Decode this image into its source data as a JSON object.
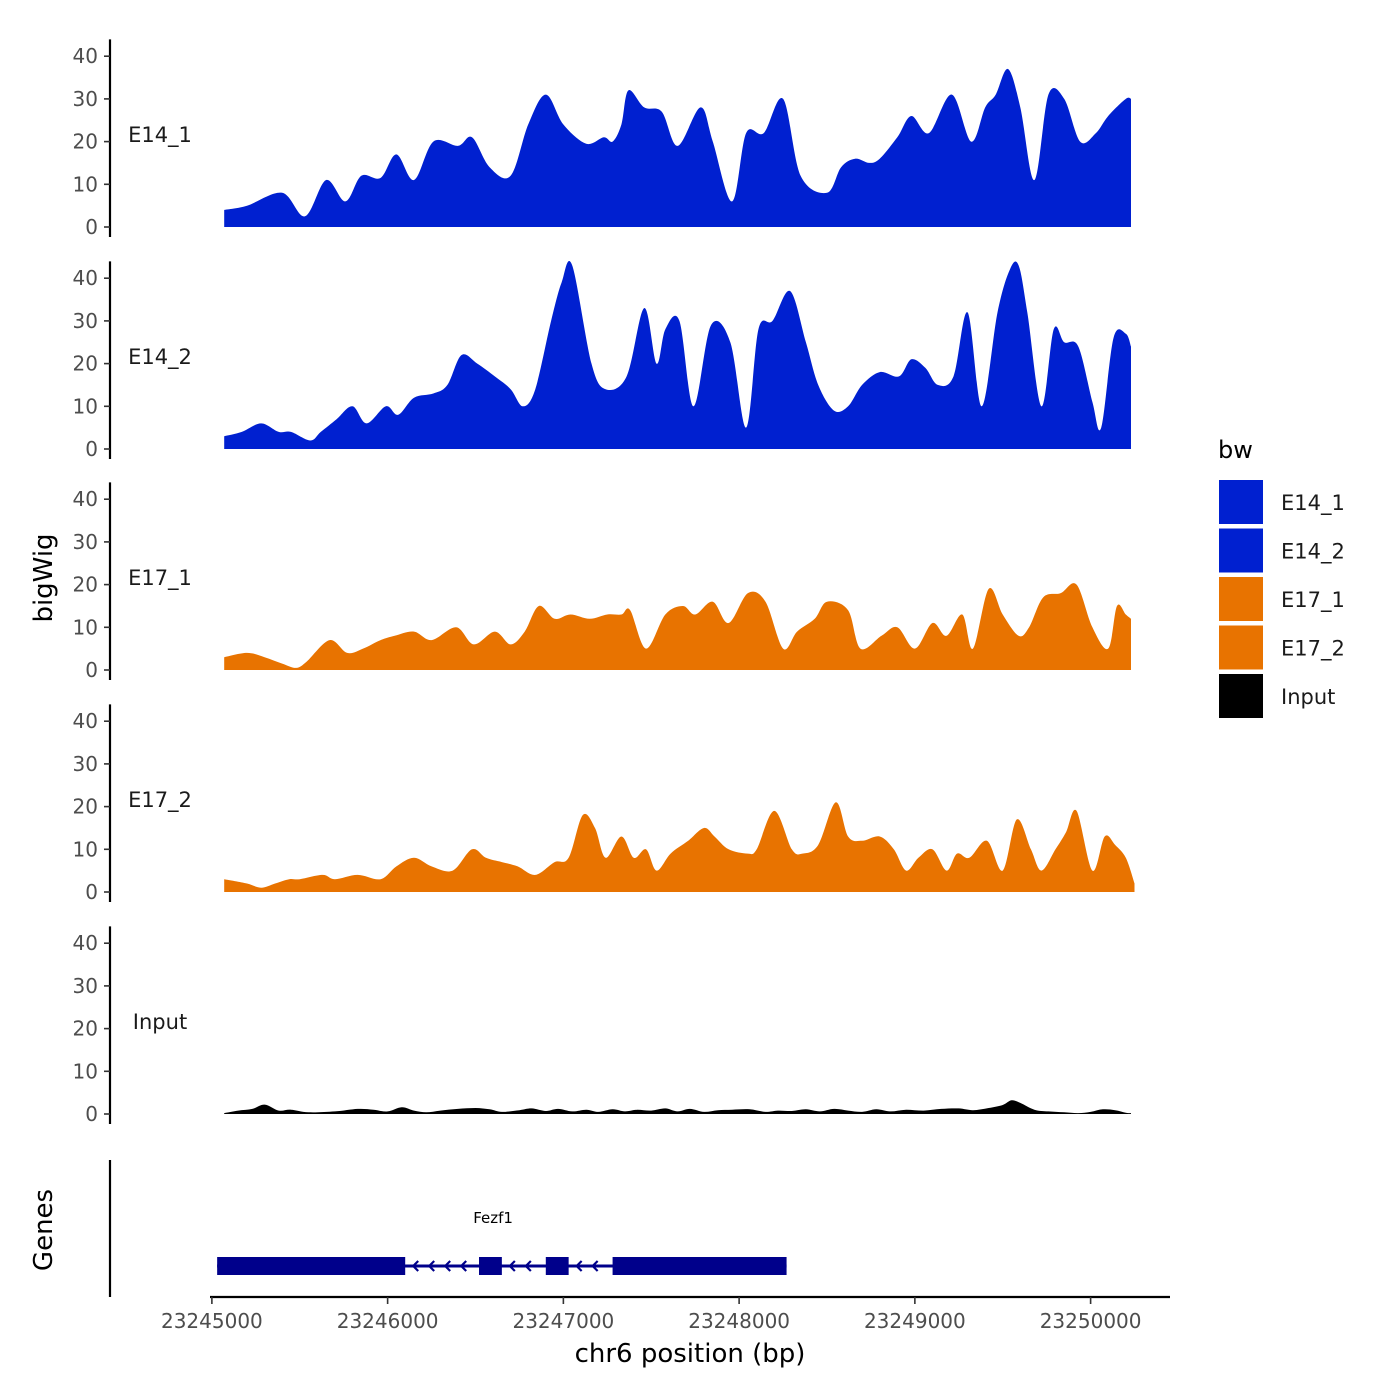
{
  "chart_data": {
    "type": "area",
    "title": "",
    "xlabel": "chr6 position (bp)",
    "ylabel": "bigWig",
    "genes_label": "Genes",
    "x_range": [
      23244830,
      23250520
    ],
    "x_ticks": [
      23245000,
      23246000,
      23247000,
      23248000,
      23249000,
      23250000
    ],
    "y_range": [
      0,
      43
    ],
    "y_ticks": [
      0,
      10,
      20,
      30,
      40
    ],
    "legend": {
      "title": "bw",
      "entries": [
        {
          "label": "E14_1",
          "color": "#0020d0"
        },
        {
          "label": "E14_2",
          "color": "#0020d0"
        },
        {
          "label": "E17_1",
          "color": "#e87300"
        },
        {
          "label": "E17_2",
          "color": "#e87300"
        },
        {
          "label": "Input",
          "color": "#000000"
        }
      ]
    },
    "series": [
      {
        "name": "E14_1",
        "color": "#0020d0",
        "x": [
          23245070,
          23245200,
          23245400,
          23245530,
          23245650,
          23245760,
          23245850,
          23245960,
          23246050,
          23246150,
          23246260,
          23246400,
          23246480,
          23246580,
          23246700,
          23246800,
          23246900,
          23247000,
          23247130,
          23247230,
          23247280,
          23247330,
          23247370,
          23247460,
          23247560,
          23247650,
          23247780,
          23247850,
          23247960,
          23248040,
          23248140,
          23248250,
          23248350,
          23248500,
          23248580,
          23248660,
          23248740,
          23248800,
          23248900,
          23248980,
          23249080,
          23249210,
          23249320,
          23249400,
          23249460,
          23249530,
          23249600,
          23249680,
          23249760,
          23249850,
          23249940,
          23250030,
          23250100,
          23250200,
          23250230
        ],
        "y": [
          4,
          5,
          8,
          2.5,
          11,
          6,
          12,
          11.5,
          17,
          11,
          20,
          19,
          21,
          14,
          12,
          24,
          31,
          24,
          19.5,
          21,
          20,
          24,
          32,
          28,
          27,
          19,
          28,
          20,
          6,
          22,
          22,
          30,
          12,
          8,
          14,
          16,
          15,
          16,
          21,
          26,
          22,
          31,
          20,
          28,
          31,
          37,
          28,
          11,
          31,
          30,
          20,
          22,
          26,
          30,
          30
        ]
      },
      {
        "name": "E14_2",
        "color": "#0020d0",
        "x": [
          23245070,
          23245170,
          23245280,
          23245380,
          23245450,
          23245560,
          23245620,
          23245710,
          23245800,
          23245880,
          23245990,
          23246060,
          23246150,
          23246260,
          23246340,
          23246420,
          23246510,
          23246610,
          23246700,
          23246770,
          23246840,
          23246930,
          23246990,
          23247050,
          23247160,
          23247240,
          23247360,
          23247460,
          23247530,
          23247580,
          23247660,
          23247740,
          23247840,
          23247950,
          23248040,
          23248110,
          23248190,
          23248290,
          23248380,
          23248450,
          23248540,
          23248620,
          23248700,
          23248800,
          23248910,
          23248980,
          23249060,
          23249130,
          23249220,
          23249300,
          23249380,
          23249470,
          23249540,
          23249590,
          23249640,
          23249720,
          23249790,
          23249850,
          23249930,
          23250010,
          23250060,
          23250130,
          23250200,
          23250230
        ],
        "y": [
          3,
          4,
          6,
          4,
          4,
          2,
          4,
          7,
          10,
          6,
          10,
          8,
          12,
          13,
          15,
          22,
          20,
          17,
          14,
          10,
          14,
          30,
          39,
          43,
          20,
          14,
          17,
          33,
          20,
          28,
          30,
          10,
          29,
          25,
          5,
          28,
          30,
          37,
          25,
          15,
          9,
          10,
          15,
          18,
          17,
          21,
          19,
          15,
          17,
          32,
          10,
          32,
          42,
          43,
          32,
          10,
          28,
          25,
          24,
          11,
          5,
          26,
          27,
          24
        ]
      },
      {
        "name": "E17_1",
        "color": "#e87300",
        "x": [
          23245070,
          23245200,
          23245300,
          23245400,
          23245480,
          23245540,
          23245670,
          23245770,
          23245860,
          23245960,
          23246040,
          23246150,
          23246250,
          23246390,
          23246490,
          23246610,
          23246700,
          23246780,
          23246860,
          23246950,
          23247040,
          23247150,
          23247250,
          23247330,
          23247380,
          23247470,
          23247580,
          23247680,
          23247750,
          23247850,
          23247940,
          23248050,
          23248150,
          23248250,
          23248330,
          23248430,
          23248500,
          23248620,
          23248690,
          23248810,
          23248900,
          23249000,
          23249100,
          23249180,
          23249270,
          23249330,
          23249420,
          23249500,
          23249590,
          23249650,
          23249730,
          23249830,
          23249920,
          23250010,
          23250100,
          23250150,
          23250200,
          23250230
        ],
        "y": [
          3,
          4,
          3,
          1.5,
          0.5,
          2,
          7,
          4,
          5,
          7,
          8,
          9,
          7,
          10,
          6,
          9,
          6,
          9,
          15,
          12,
          13,
          12,
          13,
          13,
          14,
          5,
          13,
          15,
          13,
          16,
          11,
          18,
          16,
          5,
          9,
          12,
          16,
          14,
          5,
          8,
          10,
          5,
          11,
          8,
          13,
          5,
          19,
          13,
          8,
          10,
          17,
          18,
          20,
          10,
          5,
          15,
          13,
          12
        ]
      },
      {
        "name": "E17_2",
        "color": "#e87300",
        "x": [
          23245070,
          23245200,
          23245280,
          23245360,
          23245440,
          23245500,
          23245630,
          23245700,
          23245830,
          23245960,
          23246050,
          23246150,
          23246250,
          23246370,
          23246480,
          23246560,
          23246650,
          23246740,
          23246840,
          23246950,
          23247030,
          23247110,
          23247180,
          23247240,
          23247330,
          23247400,
          23247470,
          23247530,
          23247610,
          23247710,
          23247800,
          23247860,
          23247940,
          23248050,
          23248100,
          23248200,
          23248300,
          23248360,
          23248450,
          23248550,
          23248620,
          23248700,
          23248800,
          23248880,
          23248950,
          23249020,
          23249100,
          23249180,
          23249240,
          23249310,
          23249410,
          23249500,
          23249580,
          23249660,
          23249720,
          23249800,
          23249860,
          23249920,
          23250010,
          23250080,
          23250140,
          23250200,
          23250250
        ],
        "y": [
          3,
          2,
          1,
          2,
          3,
          3,
          4,
          3,
          4,
          3,
          6,
          8,
          6,
          5,
          10,
          8,
          7,
          6,
          4,
          7,
          8,
          18,
          15,
          8,
          13,
          8,
          10,
          5,
          9,
          12,
          15,
          13,
          10,
          9,
          10,
          19,
          10,
          9,
          11,
          21,
          13,
          12,
          13,
          10,
          5,
          8,
          10,
          5,
          9,
          8,
          12,
          5,
          17,
          10,
          5,
          10,
          14,
          19,
          5,
          13,
          11,
          8,
          2
        ]
      },
      {
        "name": "Input",
        "color": "#000000",
        "x": [
          23245070,
          23245150,
          23245230,
          23245300,
          23245380,
          23245450,
          23245550,
          23245700,
          23245830,
          23245920,
          23246000,
          23246080,
          23246150,
          23246220,
          23246300,
          23246400,
          23246500,
          23246580,
          23246650,
          23246750,
          23246820,
          23246900,
          23246970,
          23247050,
          23247130,
          23247200,
          23247280,
          23247350,
          23247420,
          23247500,
          23247580,
          23247650,
          23247720,
          23247800,
          23247880,
          23247960,
          23248060,
          23248150,
          23248220,
          23248300,
          23248380,
          23248460,
          23248540,
          23248620,
          23248700,
          23248780,
          23248860,
          23248950,
          23249050,
          23249150,
          23249250,
          23249330,
          23249420,
          23249500,
          23249550,
          23249600,
          23249680,
          23249760,
          23249850,
          23249930,
          23250000,
          23250070,
          23250140,
          23250200,
          23250230
        ],
        "y": [
          0.2,
          0.8,
          1.2,
          2.2,
          0.8,
          1.0,
          0.4,
          0.6,
          1.2,
          1.0,
          0.6,
          1.6,
          0.8,
          0.4,
          0.8,
          1.2,
          1.4,
          1.1,
          0.5,
          0.9,
          1.3,
          0.7,
          1.2,
          0.6,
          1.0,
          0.5,
          1.1,
          0.6,
          1.0,
          0.8,
          1.3,
          0.6,
          1.2,
          0.5,
          0.9,
          1.0,
          1.1,
          0.5,
          0.8,
          0.7,
          1.1,
          0.6,
          1.2,
          0.8,
          0.5,
          1.1,
          0.6,
          1.0,
          0.8,
          1.2,
          1.3,
          0.9,
          1.4,
          2.1,
          3.2,
          2.6,
          1.0,
          0.6,
          0.4,
          0.2,
          0.5,
          1.1,
          0.9,
          0.3,
          0.2
        ]
      }
    ],
    "genes": {
      "name": "Fezf1",
      "color": "#00008b",
      "strand": "-",
      "start": 23245030,
      "end": 23248270,
      "exons": [
        [
          23245030,
          23246100
        ],
        [
          23246520,
          23246650
        ],
        [
          23246900,
          23247030
        ],
        [
          23247280,
          23248270
        ]
      ]
    }
  }
}
